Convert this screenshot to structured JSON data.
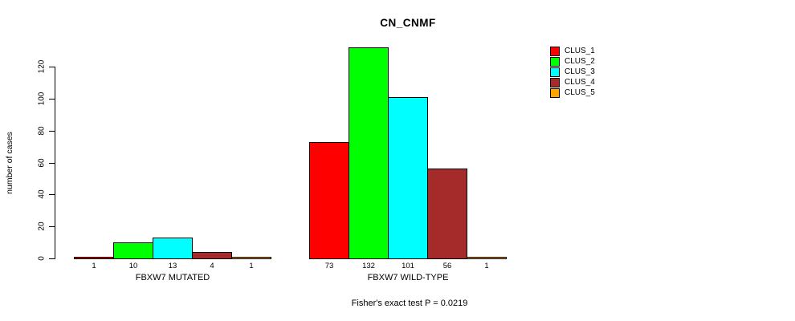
{
  "title": "CN_CNMF",
  "y_axis": {
    "label": "number of cases",
    "ticks": [
      0,
      20,
      40,
      60,
      80,
      100,
      120
    ]
  },
  "footer": "Fisher's exact test P = 0.0219",
  "legend": [
    {
      "label": "CLUS_1",
      "color": "#FF0000"
    },
    {
      "label": "CLUS_2",
      "color": "#00FF00"
    },
    {
      "label": "CLUS_3",
      "color": "#00FFFF"
    },
    {
      "label": "CLUS_4",
      "color": "#A52A2A"
    },
    {
      "label": "CLUS_5",
      "color": "#FFA500"
    }
  ],
  "chart_data": {
    "type": "bar",
    "title": "CN_CNMF",
    "xlabel": "",
    "ylabel": "number of cases",
    "ylim": [
      0,
      132
    ],
    "yticks": [
      0,
      20,
      40,
      60,
      80,
      100,
      120
    ],
    "grid": false,
    "legend_position": "right",
    "categories": [
      "FBXW7 MUTATED",
      "FBXW7 WILD-TYPE"
    ],
    "series": [
      {
        "name": "CLUS_1",
        "color": "#FF0000",
        "values": [
          1,
          73
        ]
      },
      {
        "name": "CLUS_2",
        "color": "#00FF00",
        "values": [
          10,
          132
        ]
      },
      {
        "name": "CLUS_3",
        "color": "#00FFFF",
        "values": [
          13,
          101
        ]
      },
      {
        "name": "CLUS_4",
        "color": "#A52A2A",
        "values": [
          4,
          56
        ]
      },
      {
        "name": "CLUS_5",
        "color": "#FFA500",
        "values": [
          1,
          1
        ]
      }
    ],
    "bar_value_labels": true,
    "annotation": "Fisher's exact test P = 0.0219"
  }
}
